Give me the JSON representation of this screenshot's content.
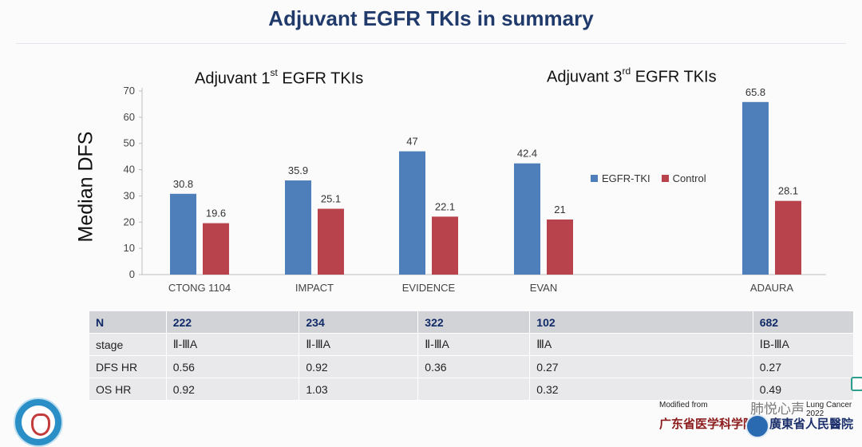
{
  "slide": {
    "title": "Adjuvant EGFR TKIs in summary",
    "group_1st": {
      "prefix": "Adjuvant 1",
      "sup": "st",
      "suffix": " EGFR TKIs"
    },
    "group_3rd": {
      "prefix": "Adjuvant 3",
      "sup": "rd",
      "suffix": " EGFR TKIs"
    }
  },
  "chart_data": {
    "type": "bar",
    "ylabel": "Median DFS",
    "xlabel": "",
    "ylim": [
      0,
      70
    ],
    "yticks": [
      0,
      10,
      20,
      30,
      40,
      50,
      60,
      70
    ],
    "grid": false,
    "legend_position": "right",
    "categories": [
      "CTONG 1104",
      "IMPACT",
      "EVIDENCE",
      "EVAN",
      "ADAURA"
    ],
    "series": [
      {
        "name": "EGFR-TKI",
        "color": "#4f7fba",
        "values": [
          30.8,
          35.9,
          47,
          42.4,
          65.8
        ],
        "labels": [
          "30.8",
          "35.9",
          "47",
          "42.4",
          "65.8"
        ]
      },
      {
        "name": "Control",
        "color": "#b8434c",
        "values": [
          19.6,
          25.1,
          22.1,
          21,
          28.1
        ],
        "labels": [
          "19.6",
          "25.1",
          "22.1",
          "21",
          "28.1"
        ]
      }
    ]
  },
  "table": {
    "header": [
      "N",
      "222",
      "234",
      "322",
      "102",
      "682"
    ],
    "rows": [
      [
        "stage",
        "Ⅱ-ⅢA",
        "Ⅱ-ⅢA",
        "Ⅱ-ⅢA",
        "ⅢA",
        "ⅠB-ⅢA"
      ],
      [
        "DFS HR",
        "0.56",
        "0.92",
        "0.36",
        "0.27",
        "0.27"
      ],
      [
        "OS HR",
        "0.92",
        "1.03",
        "",
        "0.32",
        "0.49"
      ]
    ]
  },
  "footer": {
    "modified_from": "Modified from",
    "watermark": "肺悦心声",
    "citation_fragment": "Lung Cancer 2022",
    "institution_1": "广东省医学科学院",
    "institution_2": "廣東省人民醫院"
  }
}
